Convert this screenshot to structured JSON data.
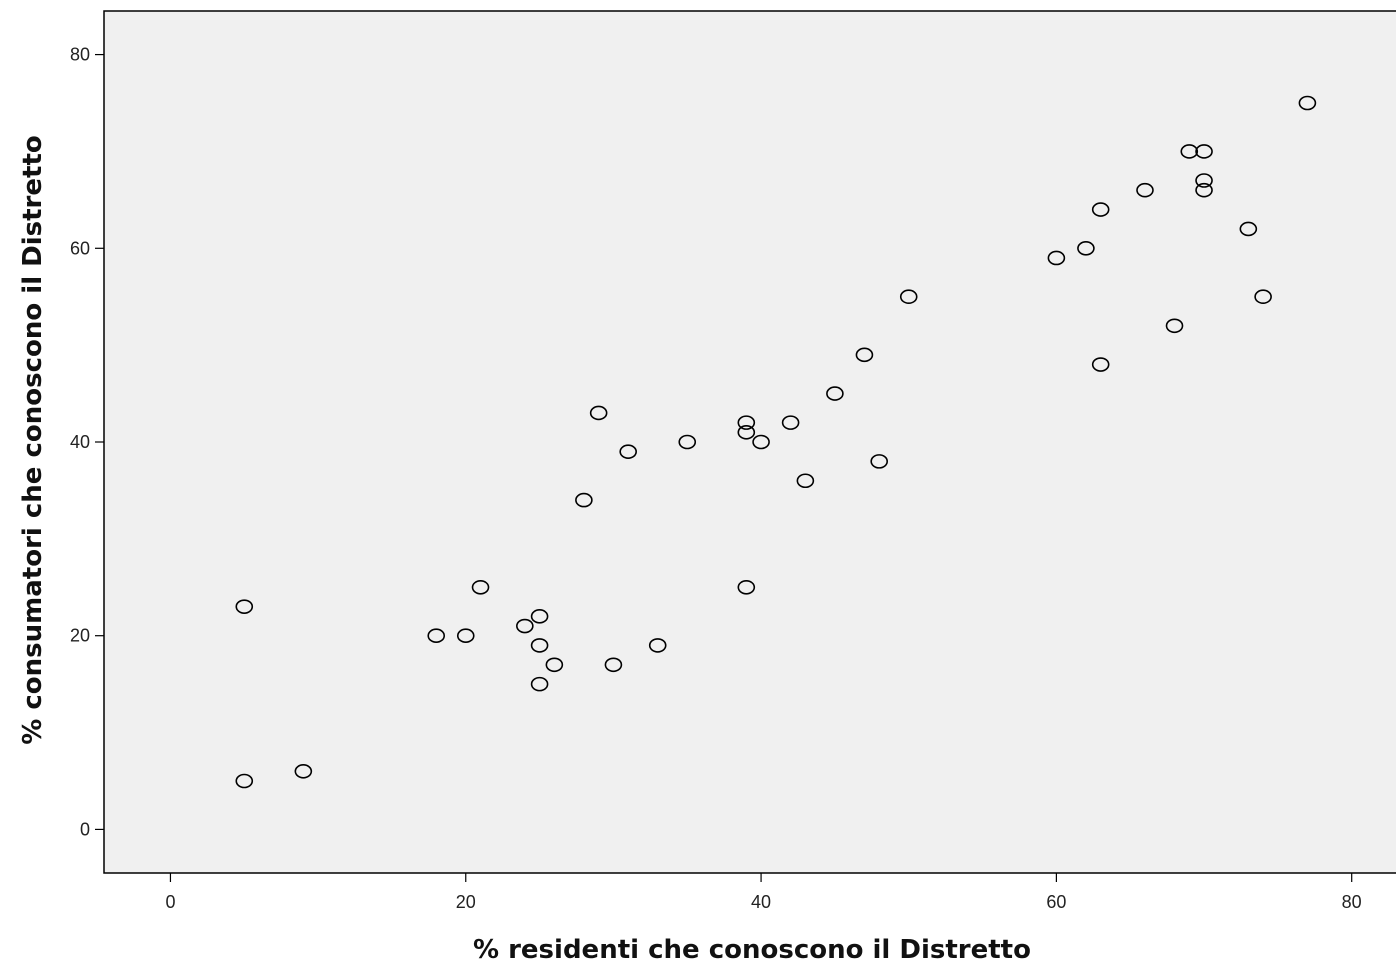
{
  "chart_data": {
    "type": "scatter",
    "title": "",
    "xlabel": "% residenti che conoscono il Distretto",
    "ylabel": "% consumatori che conoscono il Distretto",
    "xlim": [
      -4.5,
      83
    ],
    "ylim": [
      -4.5,
      84.5
    ],
    "xticks": [
      0,
      20,
      40,
      60,
      80
    ],
    "yticks": [
      0,
      20,
      40,
      60,
      80
    ],
    "grid": false,
    "plot_background": "#f0f0f0",
    "marker": "open-circle",
    "marker_color": "#000000",
    "points": [
      {
        "x": 5,
        "y": 5
      },
      {
        "x": 9,
        "y": 6
      },
      {
        "x": 5,
        "y": 23
      },
      {
        "x": 18,
        "y": 20
      },
      {
        "x": 20,
        "y": 20
      },
      {
        "x": 21,
        "y": 25
      },
      {
        "x": 24,
        "y": 21
      },
      {
        "x": 25,
        "y": 22
      },
      {
        "x": 25,
        "y": 19
      },
      {
        "x": 25,
        "y": 15
      },
      {
        "x": 26,
        "y": 17
      },
      {
        "x": 28,
        "y": 34
      },
      {
        "x": 29,
        "y": 43
      },
      {
        "x": 30,
        "y": 17
      },
      {
        "x": 31,
        "y": 39
      },
      {
        "x": 33,
        "y": 19
      },
      {
        "x": 35,
        "y": 40
      },
      {
        "x": 39,
        "y": 42
      },
      {
        "x": 39,
        "y": 41
      },
      {
        "x": 39,
        "y": 25
      },
      {
        "x": 40,
        "y": 40
      },
      {
        "x": 42,
        "y": 42
      },
      {
        "x": 43,
        "y": 36
      },
      {
        "x": 45,
        "y": 45
      },
      {
        "x": 47,
        "y": 49
      },
      {
        "x": 48,
        "y": 38
      },
      {
        "x": 50,
        "y": 55
      },
      {
        "x": 60,
        "y": 59
      },
      {
        "x": 62,
        "y": 60
      },
      {
        "x": 63,
        "y": 64
      },
      {
        "x": 63,
        "y": 48
      },
      {
        "x": 66,
        "y": 66
      },
      {
        "x": 68,
        "y": 52
      },
      {
        "x": 69,
        "y": 70
      },
      {
        "x": 70,
        "y": 70
      },
      {
        "x": 70,
        "y": 67
      },
      {
        "x": 70,
        "y": 66
      },
      {
        "x": 73,
        "y": 62
      },
      {
        "x": 74,
        "y": 55
      },
      {
        "x": 77,
        "y": 75
      }
    ]
  }
}
